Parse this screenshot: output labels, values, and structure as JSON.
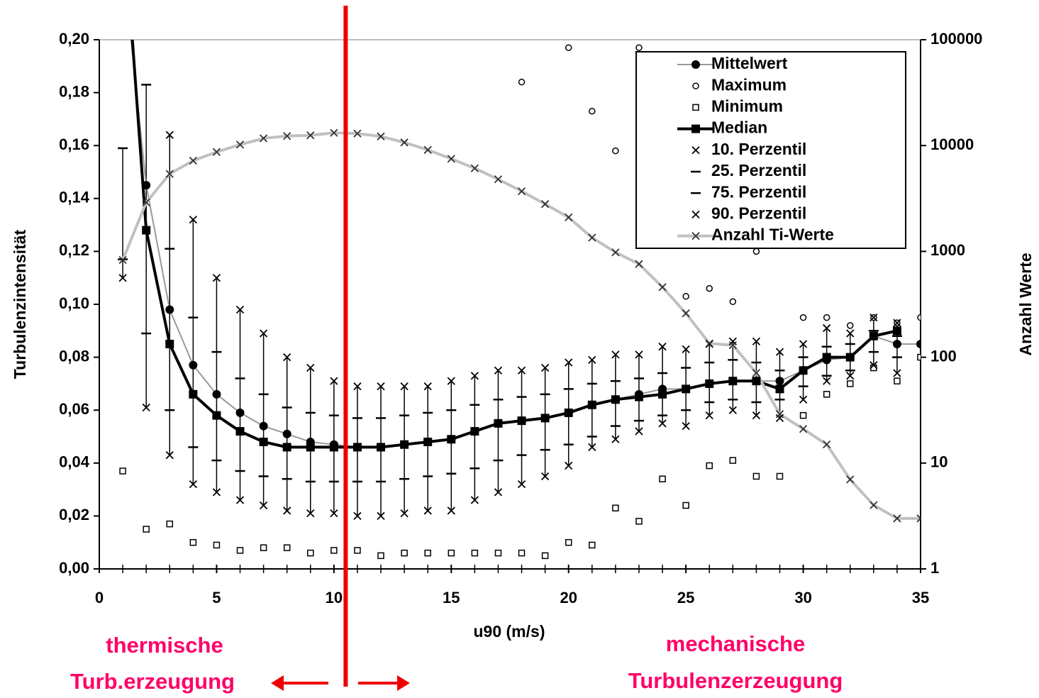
{
  "chart_data": {
    "type": "line",
    "xlabel": "u90 (m/s)",
    "ylabel": "Turbulenzintensität",
    "y2label": "Anzahl Werte",
    "x": [
      1,
      2,
      3,
      4,
      5,
      6,
      7,
      8,
      9,
      10,
      11,
      12,
      13,
      14,
      15,
      16,
      17,
      18,
      19,
      20,
      21,
      22,
      23,
      24,
      25,
      26,
      27,
      28,
      29,
      30,
      31,
      32,
      33,
      34,
      35
    ],
    "xlim": [
      0,
      35
    ],
    "xticks": [
      0,
      5,
      10,
      15,
      20,
      25,
      30,
      35
    ],
    "ylim": [
      0,
      0.2
    ],
    "yticks": [
      {
        "value": 0,
        "label": "0,00"
      },
      {
        "value": 0.02,
        "label": "0,02"
      },
      {
        "value": 0.04,
        "label": "0,04"
      },
      {
        "value": 0.06,
        "label": "0,06"
      },
      {
        "value": 0.08,
        "label": "0,08"
      },
      {
        "value": 0.1,
        "label": "0,10"
      },
      {
        "value": 0.12,
        "label": "0,12"
      },
      {
        "value": 0.14,
        "label": "0,14"
      },
      {
        "value": 0.16,
        "label": "0,16"
      },
      {
        "value": 0.18,
        "label": "0,18"
      },
      {
        "value": 0.2,
        "label": "0,20"
      }
    ],
    "y2lim": [
      1,
      100000
    ],
    "y2ticks": [
      1,
      10,
      100,
      1000,
      10000,
      100000
    ],
    "y2log": true,
    "legend": "upper right",
    "divider_x": 10.5,
    "divider_color": "#ee0000",
    "annotation_color": "#ff0066",
    "annotations": [
      {
        "lines": [
          "thermische",
          "Turb.erzeugung"
        ]
      },
      {
        "lines": [
          "mechanische",
          "Turbulenzerzeugung"
        ]
      }
    ],
    "series": [
      {
        "name": "Mittelwert",
        "marker": "circle-filled",
        "color": "#000000",
        "line": true,
        "line_color": "#999999",
        "line_width": 2,
        "values": [
          0.23,
          0.145,
          0.098,
          0.077,
          0.066,
          0.059,
          0.054,
          0.051,
          0.048,
          0.047,
          0.046,
          0.046,
          0.047,
          0.048,
          0.049,
          0.052,
          0.055,
          0.056,
          0.057,
          0.059,
          0.062,
          0.064,
          0.066,
          0.068,
          0.068,
          0.07,
          0.071,
          0.071,
          0.071,
          0.075,
          0.079,
          0.08,
          0.088,
          0.085,
          0.085
        ]
      },
      {
        "name": "Maximum",
        "marker": "circle-open",
        "color": "#000000",
        "line": false,
        "values": [
          null,
          null,
          null,
          null,
          null,
          null,
          null,
          null,
          null,
          null,
          null,
          null,
          null,
          null,
          null,
          null,
          null,
          0.184,
          null,
          0.197,
          0.173,
          0.158,
          0.197,
          null,
          0.103,
          0.106,
          0.101,
          0.12,
          null,
          0.095,
          0.095,
          0.092,
          0.095,
          0.093,
          0.095
        ]
      },
      {
        "name": "Minimum",
        "marker": "square-open",
        "color": "#000000",
        "line": false,
        "values": [
          0.037,
          0.015,
          0.017,
          0.01,
          0.009,
          0.007,
          0.008,
          0.008,
          0.006,
          0.007,
          0.007,
          0.005,
          0.006,
          0.006,
          0.006,
          0.006,
          0.006,
          0.006,
          0.005,
          0.01,
          0.009,
          0.023,
          0.018,
          0.034,
          0.024,
          0.039,
          0.041,
          0.035,
          0.035,
          0.058,
          0.066,
          0.07,
          0.076,
          0.071,
          0.08
        ]
      },
      {
        "name": "Median",
        "marker": "square-filled",
        "color": "#000000",
        "line": true,
        "line_color": "#000000",
        "line_width": 4,
        "values": [
          0.25,
          0.128,
          0.085,
          0.066,
          0.058,
          0.052,
          0.048,
          0.046,
          0.046,
          0.046,
          0.046,
          0.046,
          0.047,
          0.048,
          0.049,
          0.052,
          0.055,
          0.056,
          0.057,
          0.059,
          0.062,
          0.064,
          0.065,
          0.066,
          0.068,
          0.07,
          0.071,
          0.071,
          0.068,
          0.075,
          0.08,
          0.08,
          0.088,
          0.09,
          null
        ]
      },
      {
        "name": "10. Perzentil",
        "marker": "x",
        "color": "#000000",
        "line": false,
        "whisker": true,
        "values": [
          0.11,
          0.061,
          0.043,
          0.032,
          0.029,
          0.026,
          0.024,
          0.022,
          0.021,
          0.021,
          0.02,
          0.02,
          0.021,
          0.022,
          0.022,
          0.026,
          0.029,
          0.032,
          0.035,
          0.039,
          0.046,
          0.049,
          0.052,
          0.055,
          0.054,
          0.058,
          0.06,
          0.058,
          0.057,
          0.064,
          0.071,
          0.073,
          0.077,
          0.074,
          null
        ]
      },
      {
        "name": "25. Perzentil",
        "marker": "dash",
        "color": "#000000",
        "line": false,
        "whisker": true,
        "values": [
          0.117,
          0.089,
          0.06,
          0.046,
          0.041,
          0.037,
          0.035,
          0.034,
          0.033,
          0.033,
          0.033,
          0.033,
          0.034,
          0.035,
          0.036,
          0.038,
          0.041,
          0.043,
          0.045,
          0.047,
          0.05,
          0.054,
          0.056,
          0.058,
          0.06,
          0.063,
          0.064,
          0.063,
          0.064,
          0.069,
          0.073,
          0.075,
          0.082,
          0.08,
          null
        ]
      },
      {
        "name": "75. Perzentil",
        "marker": "dash",
        "color": "#000000",
        "line": false,
        "whisker": true,
        "values": [
          0.159,
          0.183,
          0.121,
          0.095,
          0.082,
          0.072,
          0.066,
          0.061,
          0.059,
          0.058,
          0.057,
          0.057,
          0.058,
          0.059,
          0.06,
          0.062,
          0.064,
          0.065,
          0.066,
          0.068,
          0.07,
          0.071,
          0.072,
          0.074,
          0.076,
          0.078,
          0.079,
          0.078,
          0.075,
          0.08,
          0.084,
          0.085,
          0.09,
          0.088,
          null
        ]
      },
      {
        "name": "90. Perzentil",
        "marker": "x",
        "color": "#000000",
        "line": false,
        "whisker": true,
        "values": [
          null,
          null,
          0.164,
          0.132,
          0.11,
          0.098,
          0.089,
          0.08,
          0.076,
          0.071,
          0.069,
          0.069,
          0.069,
          0.069,
          0.071,
          0.073,
          0.075,
          0.075,
          0.076,
          0.078,
          0.079,
          0.081,
          0.081,
          0.084,
          0.083,
          0.085,
          0.086,
          0.086,
          0.082,
          0.085,
          0.091,
          0.089,
          0.095,
          0.093,
          null
        ]
      },
      {
        "name": "Anzahl Ti-Werte",
        "axis": "y2",
        "marker": "x",
        "color": "#333333",
        "line": true,
        "line_color": "#c0c0c0",
        "line_width": 4,
        "values": [
          830,
          2900,
          5400,
          7200,
          8700,
          10200,
          11700,
          12300,
          12500,
          13200,
          13000,
          12200,
          10700,
          9100,
          7500,
          6100,
          4800,
          3700,
          2800,
          2100,
          1350,
          980,
          760,
          460,
          260,
          135,
          130,
          71,
          29,
          21,
          15,
          7,
          4,
          3,
          3
        ]
      }
    ]
  }
}
